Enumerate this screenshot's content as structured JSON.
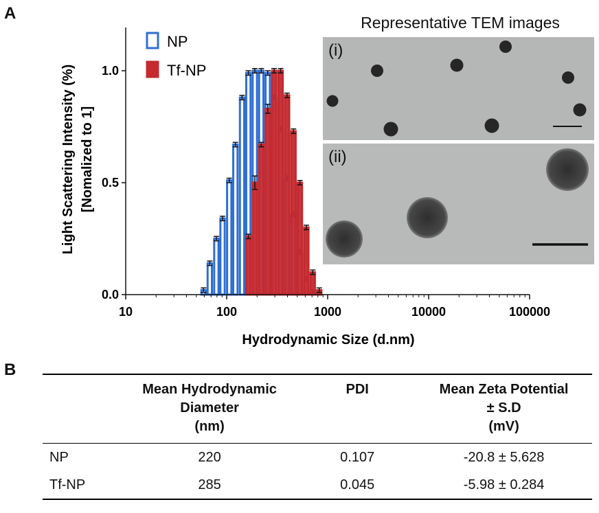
{
  "panel_a_label": "A",
  "panel_b_label": "B",
  "chart_data": {
    "type": "bar",
    "xscale": "log",
    "xlim": [
      10,
      100000
    ],
    "ylim": [
      0,
      1.2
    ],
    "xlabel": "Hydrodynamic Size (d.nm)",
    "ylabel_line1": "Light Scattering Intensity (%)",
    "ylabel_line2": "[Nomalized to 1]",
    "x_ticks": [
      10,
      100,
      1000,
      10000,
      100000
    ],
    "x_tick_labels": [
      "10",
      "100",
      "1000",
      "10000",
      "100000"
    ],
    "y_ticks": [
      0.0,
      0.5,
      1.0
    ],
    "y_tick_labels": [
      "0.0",
      "0.5",
      "1.0"
    ],
    "legend_position": "top-left",
    "series": [
      {
        "name": "NP",
        "color": "#2f6fd4",
        "fill": "#ffffff",
        "x": [
          59,
          68,
          79,
          91,
          106,
          122,
          142,
          164,
          190,
          220,
          255,
          295,
          342,
          396,
          459,
          531,
          615,
          712
        ],
        "values": [
          0.02,
          0.14,
          0.25,
          0.34,
          0.51,
          0.67,
          0.88,
          0.99,
          1.0,
          1.0,
          0.99,
          0.88,
          0.74,
          0.52,
          0.36,
          0.19,
          0.07,
          0.01
        ],
        "errors": [
          0.01,
          0.01,
          0.01,
          0.01,
          0.01,
          0.01,
          0.01,
          0.01,
          0.01,
          0.01,
          0.01,
          0.01,
          0.01,
          0.01,
          0.01,
          0.01,
          0.01,
          0.01
        ]
      },
      {
        "name": "Tf-NP",
        "color": "#c42a30",
        "fill": "#c42a30",
        "x": [
          164,
          190,
          220,
          255,
          295,
          342,
          396,
          459,
          531,
          615,
          712,
          825
        ],
        "values": [
          0.26,
          0.5,
          0.67,
          0.83,
          1.0,
          1.0,
          0.89,
          0.73,
          0.5,
          0.3,
          0.1,
          0.02
        ],
        "errors": [
          0.01,
          0.03,
          0.01,
          0.02,
          0.01,
          0.01,
          0.01,
          0.01,
          0.01,
          0.01,
          0.01,
          0.01
        ]
      }
    ]
  },
  "tem": {
    "title": "Representative TEM images",
    "panel_i": "(i)",
    "panel_ii": "(ii)",
    "background_color": "#b4b6b5",
    "particle_color": "#262626"
  },
  "table": {
    "headers": [
      "",
      "Mean Hydrodynamic Diameter (nm)",
      "PDI",
      "Mean Zeta Potential ± S.D (mV)"
    ],
    "header_lines": [
      [],
      [
        "Mean Hydrodynamic",
        "Diameter",
        "(nm)"
      ],
      [
        "PDI"
      ],
      [
        "Mean Zeta Potential",
        "± S.D",
        "(mV)"
      ]
    ],
    "rows": [
      [
        "NP",
        "220",
        "0.107",
        "-20.8 ± 5.628"
      ],
      [
        "Tf-NP",
        "285",
        "0.045",
        "-5.98 ± 0.284"
      ]
    ]
  }
}
